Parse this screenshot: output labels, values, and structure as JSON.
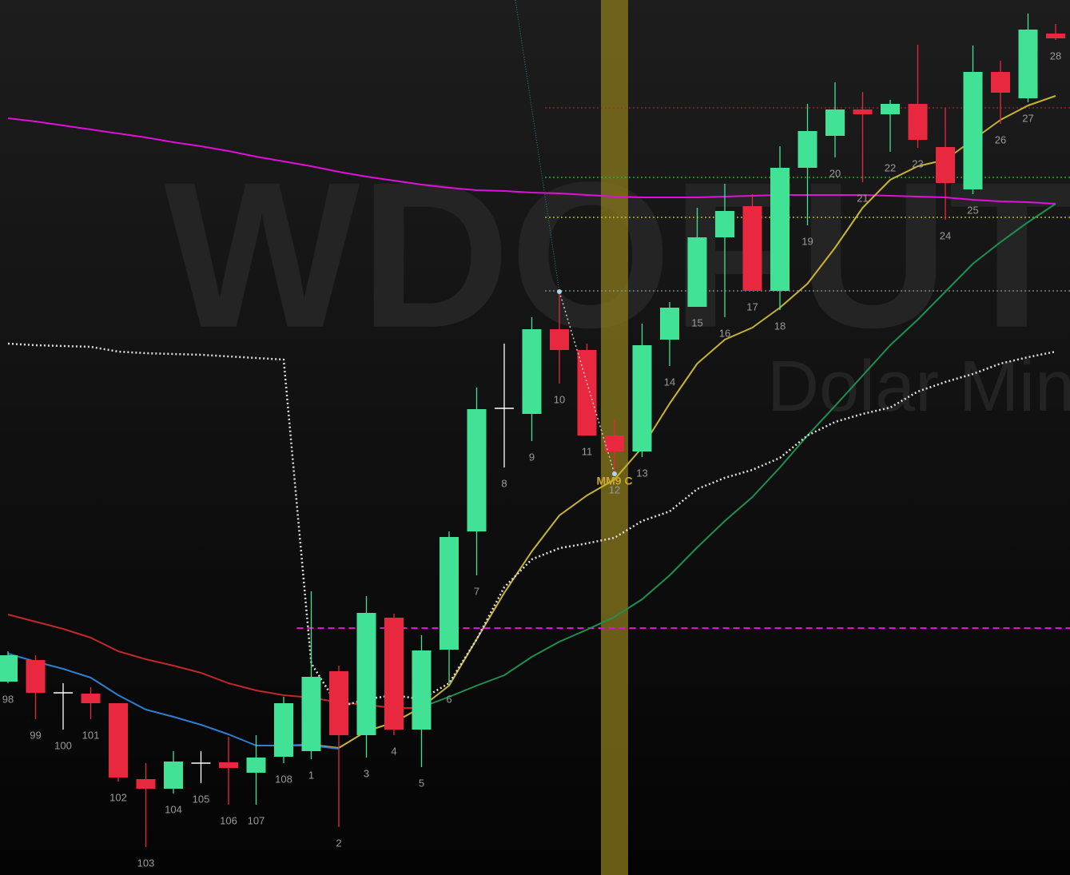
{
  "chart_data": {
    "type": "candlestick",
    "watermark": "WDOFUT",
    "watermark_subtitle": "Dolar Mini",
    "annotation": "MM9 C",
    "categories": [
      "98",
      "99",
      "100",
      "101",
      "102",
      "103",
      "104",
      "105",
      "106",
      "107",
      "108",
      "1",
      "2",
      "3",
      "4",
      "5",
      "6",
      "7",
      "8",
      "9",
      "10",
      "11",
      "12",
      "13",
      "14",
      "15",
      "16",
      "17",
      "18",
      "19",
      "20",
      "21",
      "22",
      "23",
      "24",
      "25",
      "26",
      "27",
      "28"
    ],
    "open": [
      242,
      269,
      228,
      227,
      215,
      120,
      108,
      140,
      141,
      128,
      148,
      155,
      255,
      175,
      322,
      182,
      282,
      430,
      584,
      577,
      683,
      657,
      550,
      530,
      670,
      711,
      798,
      837,
      731,
      885,
      925,
      958,
      952,
      965,
      911,
      858,
      1005,
      972,
      1053
    ],
    "high": [
      280,
      275,
      240,
      235,
      215,
      140,
      155,
      155,
      173,
      175,
      223,
      355,
      262,
      349,
      327,
      300,
      430,
      610,
      665,
      698,
      730,
      665,
      570,
      690,
      717,
      835,
      865,
      852,
      912,
      965,
      992,
      980,
      970,
      1039,
      960,
      1038,
      1019,
      1078,
      1065
    ],
    "low": [
      240,
      195,
      182,
      195,
      117,
      35,
      102,
      115,
      88,
      88,
      140,
      145,
      60,
      147,
      175,
      135,
      240,
      375,
      510,
      543,
      615,
      550,
      502,
      523,
      637,
      711,
      698,
      731,
      707,
      813,
      898,
      867,
      905,
      910,
      820,
      852,
      940,
      967,
      1045
    ],
    "close": [
      275,
      228,
      228,
      215,
      122,
      108,
      142,
      140,
      134,
      147,
      215,
      248,
      175,
      328,
      182,
      281,
      423,
      583,
      584,
      683,
      657,
      550,
      530,
      663,
      710,
      798,
      831,
      731,
      885,
      931,
      958,
      952,
      965,
      920,
      866,
      1005,
      979,
      1058,
      1047
    ],
    "up_color": "#41e296",
    "down_color": "#e8283f",
    "doji_color": "#ffffff",
    "ylim": [
      0,
      1095
    ],
    "highlight": "12",
    "highlight_color": "#8a7a1c",
    "series": [
      {
        "color": "#e010d8",
        "style": "solid",
        "values": [
          947,
          943,
          938,
          933,
          928,
          923,
          917,
          912,
          906,
          899,
          893,
          887,
          880,
          874,
          869,
          864,
          860,
          857,
          856,
          854,
          853,
          851,
          849,
          848,
          848,
          848,
          849,
          850,
          851,
          851,
          851,
          851,
          850,
          849,
          848,
          845,
          843,
          842,
          840
        ]
      },
      {
        "color": "#c8b432",
        "style": "solid",
        "values": [
          null,
          null,
          null,
          null,
          null,
          null,
          null,
          null,
          null,
          null,
          162,
          163,
          159,
          180,
          191,
          210,
          237,
          295,
          353,
          405,
          450,
          475,
          495,
          535,
          590,
          640,
          670,
          685,
          710,
          740,
          785,
          835,
          870,
          887,
          895,
          920,
          945,
          963,
          975
        ]
      },
      {
        "color": "#1e9150",
        "style": "solid",
        "values": [
          null,
          null,
          null,
          null,
          null,
          null,
          null,
          null,
          null,
          null,
          null,
          null,
          null,
          null,
          null,
          210,
          223,
          237,
          250,
          273,
          292,
          307,
          323,
          345,
          375,
          410,
          443,
          473,
          510,
          550,
          587,
          625,
          663,
          695,
          730,
          765,
          792,
          817,
          840
        ]
      },
      {
        "color": "#c0282c",
        "style": "solid",
        "values": [
          326,
          317,
          308,
          297,
          280,
          270,
          262,
          253,
          240,
          231,
          225,
          222,
          216,
          213,
          209,
          209,
          null,
          null,
          null,
          null,
          null,
          null,
          null,
          null,
          null,
          null,
          null,
          null,
          null,
          null,
          null,
          null,
          null,
          null,
          null,
          null,
          null,
          null,
          null
        ]
      },
      {
        "color": "#2f7fd0",
        "style": "solid",
        "values": [
          277,
          267,
          258,
          247,
          225,
          207,
          198,
          188,
          176,
          162,
          162,
          162,
          158,
          null,
          null,
          null,
          null,
          null,
          null,
          null,
          null,
          null,
          null,
          null,
          null,
          null,
          null,
          null,
          null,
          null,
          null,
          null,
          null,
          null,
          null,
          null,
          null,
          null,
          null
        ]
      },
      {
        "color": "#dddddd",
        "style": "dotted",
        "values": [
          665,
          663,
          662,
          661,
          655,
          653,
          652,
          651,
          649,
          647,
          645,
          265,
          210,
          220,
          225,
          220,
          240,
          295,
          360,
          395,
          409,
          415,
          422,
          443,
          455,
          483,
          497,
          507,
          522,
          550,
          567,
          577,
          585,
          605,
          617,
          627,
          640,
          648,
          655
        ]
      }
    ],
    "levels": [
      {
        "value": 309,
        "color": "#e010d8",
        "style": "dashed",
        "from": "1"
      },
      {
        "value": 960,
        "color": "#c02020",
        "style": "dotted",
        "from": "10"
      },
      {
        "value": 873,
        "color": "#30c030",
        "style": "dotted",
        "from": "10"
      },
      {
        "value": 823,
        "color": "#d8d020",
        "style": "dotted",
        "from": "10"
      },
      {
        "value": 731,
        "color": "#8898a8",
        "style": "dotted",
        "from": "10"
      }
    ]
  }
}
